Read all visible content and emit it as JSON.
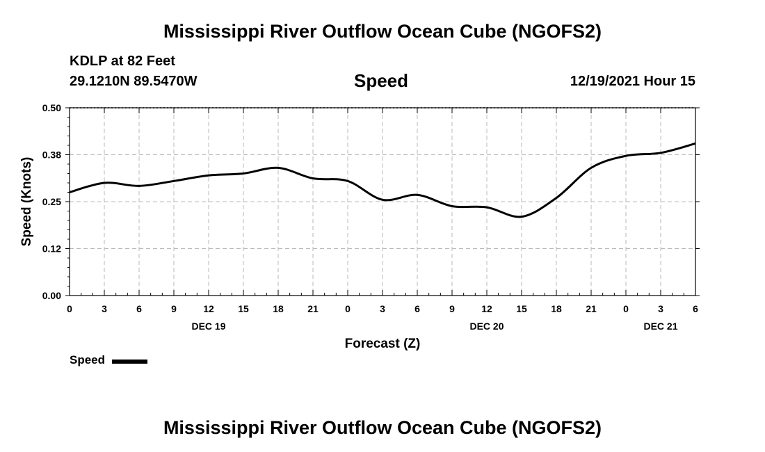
{
  "chart_data": {
    "type": "line",
    "title": "Mississippi River Outflow Ocean Cube (NGOFS2)",
    "station": "KDLP at 82 Feet",
    "coords": "29.1210N  89.5470W",
    "subtitle": "Speed",
    "datetime": "12/19/2021 Hour 15",
    "ylabel": "Speed (Knots)",
    "xlabel": "Forecast (Z)",
    "ylim": [
      0,
      0.5
    ],
    "yticks": [
      "0.00",
      "0.12",
      "0.25",
      "0.38",
      "0.50"
    ],
    "ytick_values": [
      0,
      0.125,
      0.25,
      0.375,
      0.5
    ],
    "xlim": [
      0,
      54
    ],
    "xticks": [
      "0",
      "3",
      "6",
      "9",
      "12",
      "15",
      "18",
      "21",
      "0",
      "3",
      "6",
      "9",
      "12",
      "15",
      "18",
      "21",
      "0",
      "3",
      "6"
    ],
    "date_labels": [
      {
        "text": "DEC 19",
        "hour": 12
      },
      {
        "text": "DEC 20",
        "hour": 36
      },
      {
        "text": "DEC 21",
        "hour": 51
      }
    ],
    "grid": true,
    "series": [
      {
        "name": "Speed",
        "color": "#000000",
        "x": [
          0,
          3,
          6,
          9,
          12,
          15,
          18,
          21,
          24,
          27,
          30,
          33,
          36,
          39,
          42,
          45,
          48,
          51,
          54
        ],
        "values": [
          0.275,
          0.3,
          0.292,
          0.305,
          0.32,
          0.325,
          0.34,
          0.312,
          0.305,
          0.255,
          0.268,
          0.238,
          0.235,
          0.21,
          0.26,
          0.34,
          0.372,
          0.38,
          0.405
        ]
      }
    ],
    "legend": {
      "label": "Speed",
      "placement": "bottom-left"
    },
    "footer_title": "Mississippi River Outflow Ocean Cube (NGOFS2)"
  }
}
